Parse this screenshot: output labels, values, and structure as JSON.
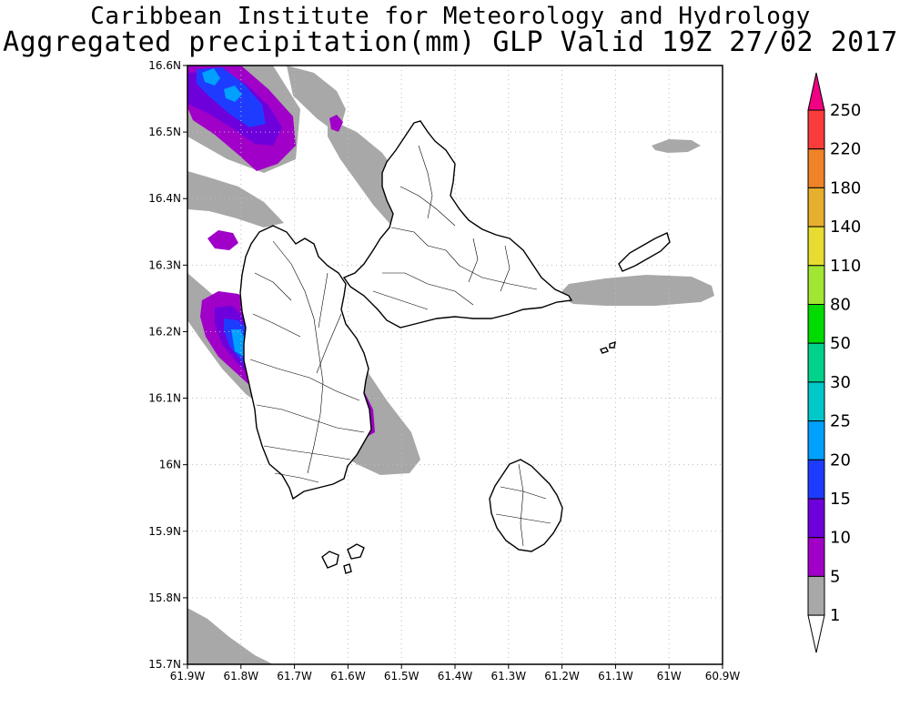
{
  "header": {
    "line1": "Caribbean Institute for Meteorology and Hydrology",
    "line2": "Aggregated precipitation(mm) GLP Valid 19Z 27/02 2017"
  },
  "map": {
    "lon_range": [
      -61.9,
      -60.9
    ],
    "lat_range": [
      15.7,
      16.6
    ],
    "lon_ticks": [
      "61.9W",
      "61.8W",
      "61.7W",
      "61.6W",
      "61.5W",
      "61.4W",
      "61.3W",
      "61.2W",
      "61.1W",
      "61W",
      "60.9W"
    ],
    "lat_ticks": [
      "16.6N",
      "16.5N",
      "16.4N",
      "16.3N",
      "16.2N",
      "16.1N",
      "16N",
      "15.9N",
      "15.8N",
      "15.7N"
    ],
    "grid": "dotted"
  },
  "colorbar": {
    "unit": "mm",
    "labels": [
      "1",
      "5",
      "10",
      "15",
      "20",
      "25",
      "30",
      "50",
      "80",
      "110",
      "140",
      "180",
      "220",
      "250"
    ],
    "colors": [
      "#ffffff",
      "#a8a8a8",
      "#a000c8",
      "#6e00dc",
      "#1e3cff",
      "#00a0ff",
      "#00c8c8",
      "#00d28c",
      "#00dc00",
      "#a0e632",
      "#e6dc32",
      "#e6af2d",
      "#f08228",
      "#fa3c3c",
      "#f00082"
    ]
  }
}
